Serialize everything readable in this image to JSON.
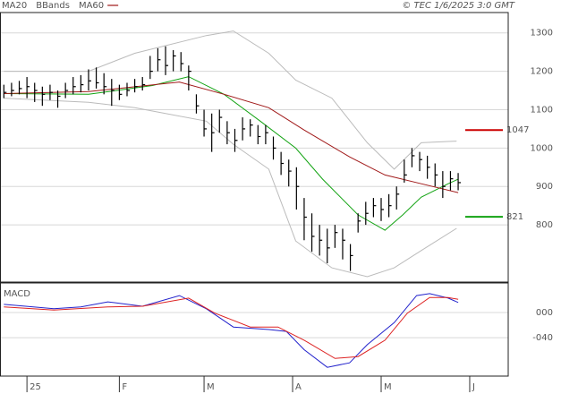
{
  "chart_data": [
    {
      "type": "ohlc",
      "copyright": "© TEC 1/6/2025 3:0 GMT",
      "xlim": [
        -0.5,
        65.5
      ],
      "ylim": [
        651,
        1353
      ],
      "yticks": [
        1300,
        1200,
        1100,
        1000,
        900,
        800
      ],
      "grid": true,
      "bar_color": "#000000",
      "high": [
        1165,
        1170,
        1175,
        1185,
        1170,
        1160,
        1165,
        1150,
        1170,
        1185,
        1190,
        1205,
        1210,
        1195,
        1180,
        1165,
        1170,
        1180,
        1185,
        1240,
        1260,
        1265,
        1255,
        1250,
        1215,
        1140,
        1100,
        1090,
        1100,
        1070,
        1050,
        1080,
        1075,
        1060,
        1060,
        1030,
        990,
        970,
        950,
        870,
        830,
        800,
        790,
        800,
        790,
        750,
        830,
        860,
        870,
        870,
        880,
        900,
        970,
        1000,
        990,
        980,
        960,
        940,
        940,
        935
      ],
      "low": [
        1130,
        1135,
        1140,
        1130,
        1120,
        1110,
        1125,
        1105,
        1130,
        1140,
        1145,
        1150,
        1155,
        1140,
        1110,
        1125,
        1135,
        1145,
        1150,
        1180,
        1200,
        1190,
        1200,
        1200,
        1150,
        1090,
        1030,
        990,
        1040,
        1010,
        990,
        1020,
        1030,
        1010,
        1010,
        970,
        930,
        900,
        840,
        760,
        730,
        720,
        700,
        740,
        710,
        680,
        780,
        800,
        820,
        810,
        820,
        840,
        910,
        950,
        940,
        920,
        900,
        870,
        890,
        890
      ],
      "close": [
        1145,
        1150,
        1155,
        1160,
        1150,
        1140,
        1145,
        1135,
        1150,
        1160,
        1165,
        1175,
        1170,
        1160,
        1150,
        1140,
        1150,
        1160,
        1165,
        1200,
        1230,
        1215,
        1240,
        1220,
        1200,
        1110,
        1050,
        1040,
        1080,
        1040,
        1020,
        1050,
        1060,
        1030,
        1040,
        1000,
        960,
        940,
        900,
        820,
        770,
        760,
        740,
        780,
        760,
        720,
        810,
        830,
        850,
        840,
        850,
        880,
        930,
        980,
        970,
        950,
        930,
        900,
        920,
        910
      ],
      "series": [
        {
          "name": "MA20",
          "color": "#12a312",
          "x": [
            0,
            11,
            19.3,
            24,
            28.6,
            33.3,
            37.9,
            41.4,
            46,
            49.5,
            51.8,
            54.2,
            57.7,
            59
          ],
          "values": [
            1142,
            1140,
            1163,
            1186,
            1140,
            1070,
            1000,
            919,
            826,
            786,
            826,
            872,
            907,
            919
          ]
        },
        {
          "name": "BBands",
          "color": "#bbbbbb",
          "x": [
            0,
            11,
            17,
            26.3,
            29.8,
            34.4,
            37.9,
            42.6,
            47.2,
            50.7,
            54.2,
            58.8
          ],
          "upper": [
            1200,
            1200,
            1247,
            1293,
            1305,
            1247,
            1177,
            1130,
            1014,
            945,
            1014,
            1018
          ],
          "lower": [
            1130,
            1119,
            1105,
            1070,
            1010,
            945,
            758,
            688,
            665,
            688,
            733,
            791
          ]
        },
        {
          "name": "MA60",
          "color": "#a01818",
          "x": [
            0,
            11,
            22.8,
            28.6,
            34.4,
            39,
            44.9,
            49.5,
            54.2,
            59
          ],
          "values": [
            1142,
            1147,
            1172,
            1140,
            1105,
            1047,
            977,
            930,
            907,
            884
          ]
        }
      ],
      "markers": [
        {
          "value": 1047,
          "color": "#cc0000"
        },
        {
          "value": 821,
          "color": "#12a312"
        }
      ]
    },
    {
      "type": "line",
      "title": "MACD",
      "xlim": [
        -0.5,
        65.5
      ],
      "ylim": [
        -101,
        47
      ],
      "yticks": [
        {
          "value": 0,
          "label": "000"
        },
        {
          "value": -40,
          "label": "-040"
        }
      ],
      "xticks": [
        {
          "value": 3,
          "label": "25"
        },
        {
          "value": 15,
          "label": "F"
        },
        {
          "value": 26,
          "label": "M"
        },
        {
          "value": 37.5,
          "label": "A"
        },
        {
          "value": 49,
          "label": "M"
        },
        {
          "value": 60.5,
          "label": "J"
        }
      ],
      "grid": true,
      "series": [
        {
          "color": "#2222cc",
          "x": [
            0,
            6.5,
            10,
            13.5,
            18,
            22.8,
            26.3,
            29.8,
            34.4,
            36.7,
            39,
            42,
            44.9,
            47.2,
            50.7,
            53.6,
            55.3,
            57.7,
            59
          ],
          "values": [
            13,
            6,
            9,
            17,
            10,
            27,
            6,
            -23,
            -27,
            -30,
            -59,
            -87,
            -80,
            -51,
            -16,
            27,
            30,
            23,
            16
          ]
        },
        {
          "color": "#dd2222",
          "x": [
            0,
            6.5,
            13.5,
            18,
            24,
            27.4,
            32,
            35.6,
            39,
            43,
            46,
            49.5,
            52.4,
            55.3,
            57.7,
            59
          ],
          "values": [
            9,
            4,
            9,
            10,
            23,
            -1,
            -23,
            -23,
            -44,
            -73,
            -70,
            -44,
            -1,
            24,
            24,
            21
          ]
        }
      ]
    }
  ]
}
